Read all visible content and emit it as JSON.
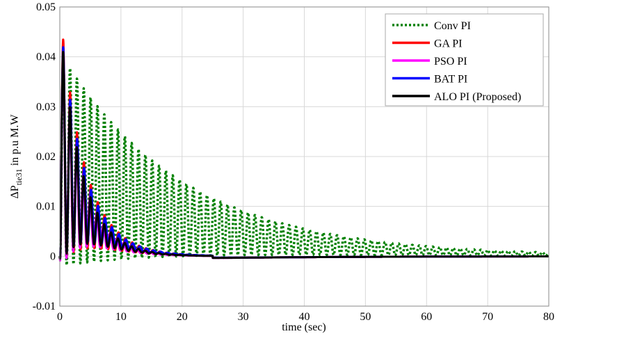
{
  "chart_data": {
    "type": "line",
    "title": "",
    "xlabel": "time (sec)",
    "ylabel_main": "ΔP",
    "ylabel_sub": "tie31",
    "ylabel_rest": " in p.u M.W",
    "xlim": [
      0,
      80
    ],
    "ylim": [
      -0.01,
      0.05
    ],
    "xticks": [
      "0",
      "10",
      "20",
      "30",
      "40",
      "50",
      "60",
      "70",
      "80"
    ],
    "xtick_values": [
      0,
      10,
      20,
      30,
      40,
      50,
      60,
      70,
      80
    ],
    "yticks": [
      "-0.01",
      "0",
      "0.01",
      "0.02",
      "0.03",
      "0.04",
      "0.05"
    ],
    "ytick_values": [
      -0.01,
      0,
      0.01,
      0.02,
      0.03,
      0.04,
      0.05
    ],
    "grid": true,
    "legend_position": "top-right",
    "series": [
      {
        "name": "Conv PI",
        "color": "#008000",
        "style": "dotted",
        "model": {
          "mean0": 0.0195,
          "mean_tau": 21,
          "amp0": 0.0215,
          "amp_tau": 19,
          "period": 1.12,
          "tmax": 80
        }
      },
      {
        "name": "GA PI",
        "color": "#ff0000",
        "style": "solid",
        "model": {
          "mean0": 0.024,
          "mean_tau": 4.6,
          "amp0": 0.026,
          "amp_tau": 3.6,
          "period": 1.13,
          "tmax": 80
        }
      },
      {
        "name": "PSO PI",
        "color": "#ff00ff",
        "style": "solid",
        "model": {
          "mean0": 0.022,
          "mean_tau": 4.2,
          "amp0": 0.025,
          "amp_tau": 3.0,
          "period": 1.1,
          "tmax": 80
        }
      },
      {
        "name": "BAT PI",
        "color": "#0000ff",
        "style": "solid",
        "model": {
          "mean0": 0.0235,
          "mean_tau": 4.8,
          "amp0": 0.025,
          "amp_tau": 3.3,
          "period": 1.14,
          "tmax": 80
        }
      },
      {
        "name": "ALO PI (Proposed)",
        "color": "#000000",
        "style": "solid",
        "model": {
          "mean0": 0.023,
          "mean_tau": 4.3,
          "amp0": 0.025,
          "amp_tau": 3.0,
          "period": 1.12,
          "tmax": 80
        }
      }
    ]
  }
}
